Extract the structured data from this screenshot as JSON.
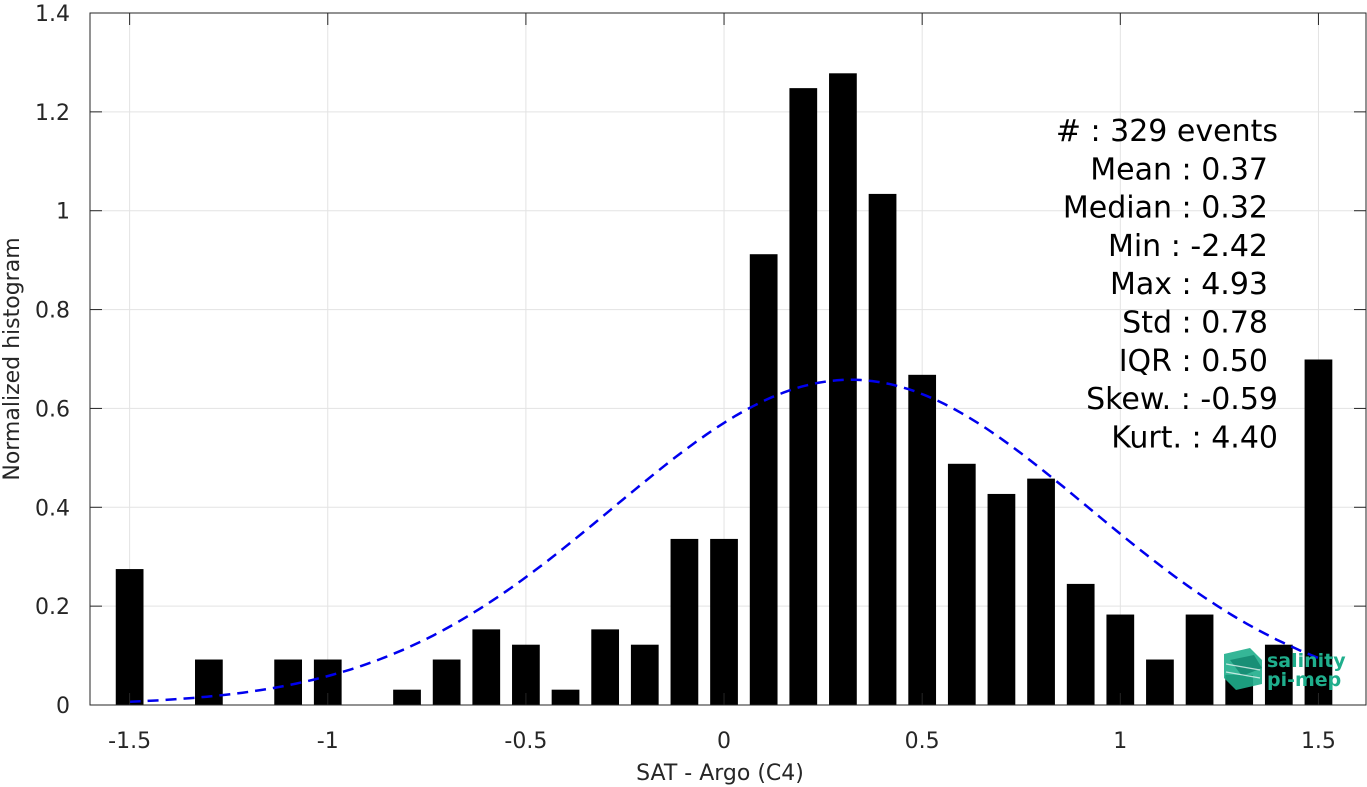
{
  "chart_data": {
    "type": "bar",
    "xlabel": "SAT - Argo (C4)",
    "ylabel": "Normalized histogram",
    "xlim": [
      -1.6,
      1.62
    ],
    "ylim": [
      0,
      1.4
    ],
    "grid": true,
    "x_ticks": [
      -1.5,
      -1,
      -0.5,
      0,
      0.5,
      1,
      1.5
    ],
    "x_tick_labels": [
      "-1.5",
      "-1",
      "-0.5",
      "0",
      "0.5",
      "1",
      "1.5"
    ],
    "y_ticks": [
      0,
      0.2,
      0.4,
      0.6,
      0.8,
      1,
      1.2,
      1.4
    ],
    "y_tick_labels": [
      "0",
      "0.2",
      "0.4",
      "0.6",
      "0.8",
      "1",
      "1.2",
      "1.4"
    ],
    "bar_width": 0.07,
    "x": [
      -1.5,
      -1.4,
      -1.3,
      -1.2,
      -1.1,
      -1.0,
      -0.9,
      -0.8,
      -0.7,
      -0.6,
      -0.5,
      -0.4,
      -0.3,
      -0.2,
      -0.1,
      0.0,
      0.1,
      0.2,
      0.3,
      0.4,
      0.5,
      0.6,
      0.7,
      0.8,
      0.9,
      1.0,
      1.1,
      1.2,
      1.3,
      1.4,
      1.5
    ],
    "values": [
      0.275,
      0,
      0.092,
      0,
      0.092,
      0.092,
      0,
      0.031,
      0.092,
      0.153,
      0.122,
      0.031,
      0.153,
      0.122,
      0.336,
      0.336,
      0.912,
      1.248,
      1.278,
      1.034,
      0.668,
      0.488,
      0.427,
      0.458,
      0.245,
      0.183,
      0.092,
      0.183,
      0.061,
      0.122,
      0.699
    ],
    "bar_color": "#000000",
    "fit_curve": {
      "style": "dashed",
      "color": "#0000ee",
      "type": "gaussian",
      "mean": 0.32,
      "peak": 0.658,
      "sigma": 0.6,
      "x_range": [
        -1.5,
        1.5
      ]
    },
    "stats": [
      "#  : 329 events",
      "Mean : 0.37",
      "Median : 0.32",
      "Min : -2.42",
      "Max : 4.93",
      "Std : 0.78",
      "IQR : 0.50",
      "Skew. : -0.59",
      "Kurt. : 4.40"
    ]
  },
  "logo": {
    "line1": "salinity",
    "line2": "pi-mep",
    "color": "#1fae8c"
  }
}
